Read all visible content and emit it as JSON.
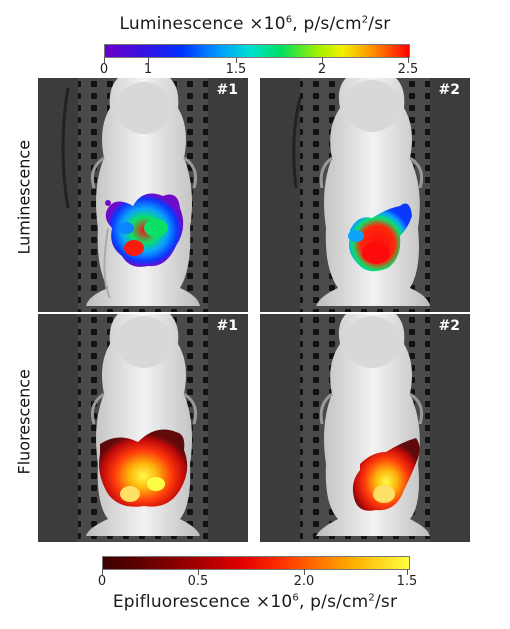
{
  "luminescence": {
    "title_prefix": "Luminescence ×10",
    "title_exp": "6",
    "title_suffix": ", p/s/cm",
    "title_sq": "2",
    "title_end": "/sr",
    "ticks": [
      "0",
      "1",
      "1.5",
      "2",
      "2.5"
    ]
  },
  "fluorescence": {
    "title_prefix": "Epifluorescence ×10",
    "title_exp": "6",
    "title_suffix": ", p/s/cm",
    "title_sq": "2",
    "title_end": "/sr",
    "ticks": [
      "0",
      "0.5",
      "2.0",
      "1.5"
    ]
  },
  "rows": {
    "top_label": "Luminescence",
    "bottom_label": "Fluorescence"
  },
  "panels": {
    "lum1": "#1",
    "lum2": "#2",
    "flu1": "#1",
    "flu2": "#2"
  },
  "colors": {
    "luminescence_scale": [
      "#6a00c8",
      "#0030ff",
      "#00c0ff",
      "#00e060",
      "#f0f000",
      "#ff8000",
      "#ff0000"
    ],
    "fluorescence_scale": [
      "#3a0000",
      "#8a0000",
      "#d00000",
      "#ff5000",
      "#ffb000",
      "#ffff40"
    ]
  }
}
